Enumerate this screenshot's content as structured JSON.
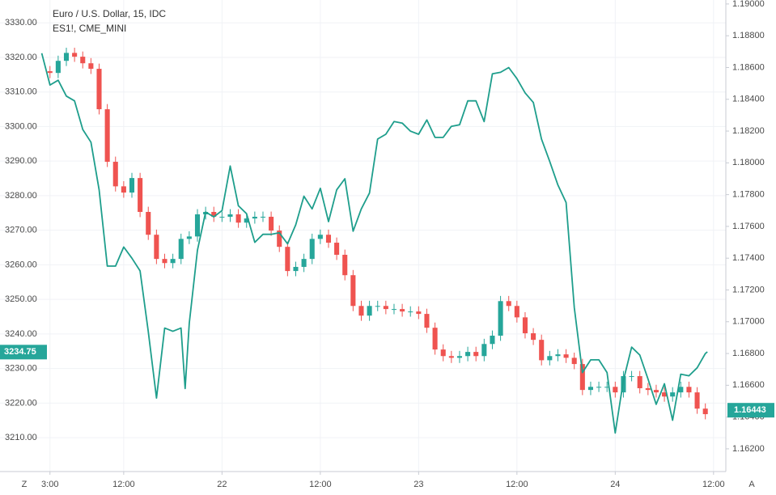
{
  "chart_data": {
    "type": "candlestick",
    "ylim": [
      3200.2,
      3336.6
    ],
    "yticks": [
      {
        "value": 3210,
        "label": "3210.00"
      },
      {
        "value": 3220,
        "label": "3220.00"
      },
      {
        "value": 3230,
        "label": "3230.00"
      },
      {
        "value": 3240,
        "label": "3240.00"
      },
      {
        "value": 3250,
        "label": "3250.00"
      },
      {
        "value": 3260,
        "label": "3260.00"
      },
      {
        "value": 3270,
        "label": "3270.00"
      },
      {
        "value": 3280,
        "label": "3280.00"
      },
      {
        "value": 3290,
        "label": "3290.00"
      },
      {
        "value": 3300,
        "label": "3300.00"
      },
      {
        "value": 3310,
        "label": "3310.00"
      },
      {
        "value": 3320,
        "label": "3320.00"
      },
      {
        "value": 3330,
        "label": "3330.00"
      }
    ],
    "y2lim": [
      1.16057,
      1.19025
    ],
    "y2ticks": [
      {
        "value": 1.162,
        "label": "1.16200"
      },
      {
        "value": 1.164,
        "label": "1.16400"
      },
      {
        "value": 1.166,
        "label": "1.16600"
      },
      {
        "value": 1.168,
        "label": "1.16800"
      },
      {
        "value": 1.17,
        "label": "1.17000"
      },
      {
        "value": 1.172,
        "label": "1.17200"
      },
      {
        "value": 1.174,
        "label": "1.17400"
      },
      {
        "value": 1.176,
        "label": "1.17600"
      },
      {
        "value": 1.178,
        "label": "1.17800"
      },
      {
        "value": 1.18,
        "label": "1.18000"
      },
      {
        "value": 1.182,
        "label": "1.18200"
      },
      {
        "value": 1.184,
        "label": "1.18400"
      },
      {
        "value": 1.186,
        "label": "1.18600"
      },
      {
        "value": 1.188,
        "label": "1.18800"
      },
      {
        "value": 1.19,
        "label": "1.19000"
      }
    ],
    "xlim": [
      -3.1,
      85.5
    ],
    "xticks": [
      {
        "value": 3,
        "label": "3:00"
      },
      {
        "value": 12,
        "label": "12:00"
      },
      {
        "value": 24,
        "label": "22"
      },
      {
        "value": 36,
        "label": "12:00"
      },
      {
        "value": 48,
        "label": "23"
      },
      {
        "value": 60,
        "label": "12:00"
      },
      {
        "value": 72,
        "label": "24"
      },
      {
        "value": 84,
        "label": "12:00"
      }
    ],
    "grid": true,
    "price_marks": [
      {
        "axis": "y",
        "value": 3234.75,
        "color": "#26a69a"
      },
      {
        "axis": "y2",
        "value": 1.16443,
        "color": "#26a69a"
      }
    ],
    "controls": [
      "Z",
      "A"
    ],
    "series": [
      {
        "name": "Euro / U.S. Dollar, 15, IDC",
        "type": "line",
        "axis": "y2",
        "color": "#1e9e8c",
        "x": [
          2,
          3,
          4,
          5,
          6,
          7,
          8,
          9,
          10,
          11,
          12,
          13,
          14,
          15,
          16,
          17,
          18,
          19,
          19.5,
          20,
          21,
          22,
          23,
          24,
          25,
          26,
          27,
          28,
          29,
          30,
          31,
          32,
          33,
          34,
          35,
          36,
          37,
          38,
          39,
          40,
          41,
          42,
          43,
          44,
          45,
          46,
          47,
          48,
          49,
          50,
          51,
          52,
          53,
          54,
          55,
          56,
          57,
          58,
          59,
          60,
          61,
          62,
          63,
          64,
          65,
          66,
          67,
          68,
          69,
          70,
          71,
          72,
          73,
          74,
          75,
          76,
          77,
          78,
          79,
          80,
          81,
          82,
          83,
          83.25
        ],
        "values": [
          1.1869,
          1.1849,
          1.1852,
          1.1842,
          1.1839,
          1.1821,
          1.1813,
          1.1783,
          1.1735,
          1.1735,
          1.1747,
          1.174,
          1.1732,
          1.1694,
          1.1652,
          1.1696,
          1.1694,
          1.1696,
          1.1658,
          1.1699,
          1.1745,
          1.1769,
          1.1766,
          1.177,
          1.1798,
          1.1773,
          1.1768,
          1.175,
          1.1755,
          1.1755,
          1.1756,
          1.1749,
          1.1761,
          1.1779,
          1.1771,
          1.1784,
          1.1763,
          1.1783,
          1.179,
          1.1757,
          1.1771,
          1.1781,
          1.1815,
          1.1818,
          1.1826,
          1.1825,
          1.182,
          1.1818,
          1.1827,
          1.1816,
          1.1816,
          1.1823,
          1.1824,
          1.1839,
          1.1839,
          1.1826,
          1.1856,
          1.1857,
          1.186,
          1.1853,
          1.1844,
          1.1838,
          1.1815,
          1.1801,
          1.1786,
          1.1775,
          1.1709,
          1.1668,
          1.1676,
          1.1676,
          1.1668,
          1.163,
          1.1663,
          1.1684,
          1.1679,
          1.1664,
          1.1648,
          1.1661,
          1.1638,
          1.1667,
          1.1666,
          1.1671,
          1.168,
          1.1681
        ]
      },
      {
        "name": "ES1!, CME_MINI",
        "type": "candlestick",
        "axis": "y",
        "up_color": "#26a69a",
        "down_color": "#ef5350",
        "x": [
          3,
          4,
          5,
          6,
          7,
          8,
          9,
          10,
          11,
          12,
          13,
          14,
          15,
          16,
          17,
          18,
          19,
          20,
          21,
          22,
          23,
          24,
          25,
          26,
          27,
          28,
          29,
          30,
          31,
          32,
          33,
          34,
          35,
          36,
          37,
          38,
          39,
          40,
          41,
          42,
          43,
          44,
          45,
          46,
          47,
          48,
          49,
          50,
          51,
          52,
          53,
          54,
          55,
          56,
          57,
          58,
          59,
          60,
          61,
          62,
          63,
          64,
          65,
          66,
          67,
          68,
          69,
          70,
          71,
          72,
          73,
          74,
          75,
          76,
          77,
          78,
          79,
          80,
          81,
          82,
          83
        ],
        "open": [
          3316.0,
          3315.5,
          3319.0,
          3321.3,
          3320.2,
          3318.3,
          3316.7,
          3305.0,
          3289.8,
          3282.7,
          3280.9,
          3285.1,
          3275.3,
          3268.7,
          3261.7,
          3260.5,
          3261.7,
          3267.5,
          3268.2,
          3274.6,
          3275.3,
          3273.9,
          3273.9,
          3274.6,
          3272.2,
          3273.4,
          3273.9,
          3273.9,
          3269.9,
          3265.2,
          3258.2,
          3259.4,
          3261.7,
          3267.5,
          3268.7,
          3266.4,
          3262.9,
          3257.0,
          3248.1,
          3245.3,
          3248.1,
          3248.1,
          3247.2,
          3247.2,
          3246.5,
          3246.5,
          3245.8,
          3241.8,
          3235.5,
          3233.6,
          3233.1,
          3233.6,
          3234.8,
          3233.6,
          3237.1,
          3239.5,
          3249.5,
          3248.1,
          3244.8,
          3240.2,
          3238.3,
          3232.4,
          3233.6,
          3234.1,
          3233.1,
          3231.3,
          3223.8,
          3224.7,
          3224.7,
          3224.7,
          3223.1,
          3227.8,
          3227.8,
          3224.3,
          3223.8,
          3223.1,
          3221.9,
          3223.1,
          3224.7,
          3223.1,
          3218.4
        ],
        "high": [
          3317.5,
          3320.5,
          3322.8,
          3322.8,
          3321.7,
          3319.8,
          3318.2,
          3306.5,
          3291.3,
          3284.2,
          3286.6,
          3286.6,
          3276.8,
          3270.2,
          3263.2,
          3263.2,
          3269.0,
          3269.7,
          3276.1,
          3276.8,
          3276.8,
          3275.4,
          3276.1,
          3276.1,
          3274.9,
          3275.4,
          3275.4,
          3275.4,
          3271.4,
          3266.7,
          3260.9,
          3263.2,
          3269.0,
          3270.2,
          3270.2,
          3267.9,
          3264.4,
          3258.5,
          3249.6,
          3249.6,
          3249.6,
          3249.6,
          3248.7,
          3248.7,
          3248.0,
          3248.0,
          3247.3,
          3243.3,
          3237.0,
          3235.1,
          3235.1,
          3236.3,
          3236.3,
          3238.6,
          3241.0,
          3251.0,
          3251.0,
          3249.6,
          3246.3,
          3241.7,
          3239.8,
          3235.1,
          3235.6,
          3235.6,
          3234.6,
          3232.8,
          3226.2,
          3226.2,
          3226.2,
          3226.2,
          3229.3,
          3229.3,
          3229.3,
          3225.8,
          3225.3,
          3224.6,
          3224.6,
          3226.2,
          3226.2,
          3224.6,
          3219.9
        ],
        "low": [
          3314.0,
          3314.0,
          3317.5,
          3318.7,
          3316.8,
          3315.2,
          3303.5,
          3288.3,
          3281.2,
          3279.4,
          3279.4,
          3273.8,
          3267.2,
          3260.2,
          3259.0,
          3259.0,
          3260.2,
          3266.0,
          3266.7,
          3273.1,
          3272.4,
          3272.4,
          3272.4,
          3270.7,
          3270.7,
          3271.9,
          3272.4,
          3268.4,
          3263.7,
          3256.7,
          3256.7,
          3257.9,
          3260.2,
          3266.0,
          3264.9,
          3261.4,
          3255.5,
          3246.6,
          3243.8,
          3243.8,
          3246.6,
          3245.7,
          3245.7,
          3245.0,
          3245.0,
          3244.3,
          3240.3,
          3234.0,
          3232.1,
          3231.6,
          3231.6,
          3232.1,
          3232.1,
          3232.1,
          3235.6,
          3238.0,
          3246.6,
          3243.3,
          3238.7,
          3236.8,
          3230.9,
          3230.9,
          3232.1,
          3231.6,
          3229.8,
          3222.3,
          3222.3,
          3223.2,
          3223.2,
          3221.6,
          3221.6,
          3226.3,
          3222.8,
          3222.3,
          3221.6,
          3220.4,
          3220.4,
          3221.6,
          3221.6,
          3216.9,
          3215.3
        ],
        "close": [
          3315.5,
          3319.0,
          3321.3,
          3320.2,
          3318.3,
          3316.7,
          3305.0,
          3289.8,
          3282.7,
          3280.9,
          3285.1,
          3275.3,
          3268.7,
          3261.7,
          3260.5,
          3261.7,
          3267.5,
          3268.2,
          3274.6,
          3275.3,
          3273.9,
          3273.9,
          3274.6,
          3272.2,
          3273.4,
          3273.9,
          3273.9,
          3269.9,
          3265.2,
          3258.2,
          3259.4,
          3261.7,
          3267.5,
          3268.7,
          3266.4,
          3262.9,
          3257.0,
          3248.1,
          3245.3,
          3248.1,
          3248.1,
          3247.2,
          3247.2,
          3246.5,
          3246.5,
          3245.8,
          3241.8,
          3235.5,
          3233.6,
          3233.1,
          3233.6,
          3234.8,
          3233.6,
          3237.1,
          3239.5,
          3249.5,
          3248.1,
          3244.8,
          3240.2,
          3238.3,
          3232.4,
          3233.6,
          3234.1,
          3233.1,
          3231.3,
          3223.8,
          3224.7,
          3224.7,
          3224.7,
          3223.1,
          3227.8,
          3227.8,
          3224.3,
          3223.8,
          3223.1,
          3221.9,
          3223.1,
          3224.7,
          3223.1,
          3218.4,
          3216.8
        ]
      }
    ]
  }
}
